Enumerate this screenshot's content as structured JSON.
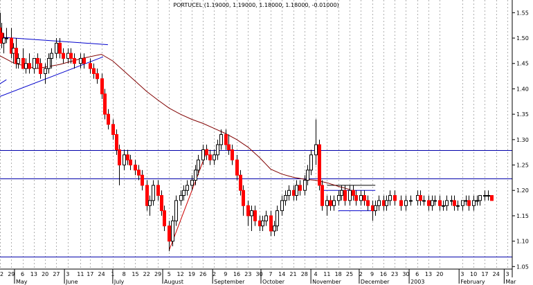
{
  "chart_data": {
    "type": "candlestick",
    "title": "PORTUCEL (1.19000, 1.19000, 1.18000, 1.18000, -0.01000)",
    "ylim": [
      1.045,
      1.575
    ],
    "y_ticks": [
      "1.55",
      "1.50",
      "1.45",
      "1.40",
      "1.35",
      "1.30",
      "1.25",
      "1.20",
      "1.15",
      "1.10",
      "1.05"
    ],
    "x_range": [
      "2002-04-22",
      "2003-03-06"
    ],
    "x_ticks_top": [
      "22",
      "29",
      "6",
      "13",
      "20",
      "27",
      "3",
      "11",
      "17",
      "24",
      "1",
      "8",
      "15",
      "22",
      "29",
      "5",
      "12",
      "19",
      "26",
      "2",
      "9",
      "16",
      "23",
      "30",
      "7",
      "14",
      "21",
      "28",
      "4",
      "11",
      "18",
      "25",
      "2",
      "9",
      "16",
      "23",
      "30",
      "6",
      "13",
      "20",
      "3",
      "10",
      "17",
      "24",
      "3"
    ],
    "x_tick_dates": [
      "2002-04-22",
      "2002-04-29",
      "2002-05-06",
      "2002-05-13",
      "2002-05-20",
      "2002-05-27",
      "2002-06-03",
      "2002-06-11",
      "2002-06-17",
      "2002-06-24",
      "2002-07-01",
      "2002-07-08",
      "2002-07-15",
      "2002-07-22",
      "2002-07-29",
      "2002-08-05",
      "2002-08-12",
      "2002-08-19",
      "2002-08-26",
      "2002-09-02",
      "2002-09-09",
      "2002-09-16",
      "2002-09-23",
      "2002-09-30",
      "2002-10-07",
      "2002-10-14",
      "2002-10-21",
      "2002-10-28",
      "2002-11-04",
      "2002-11-11",
      "2002-11-18",
      "2002-11-25",
      "2002-12-02",
      "2002-12-09",
      "2002-12-16",
      "2002-12-23",
      "2002-12-30",
      "2003-01-06",
      "2003-01-13",
      "2003-01-20",
      "2003-02-03",
      "2003-02-10",
      "2003-02-17",
      "2003-02-24",
      "2003-03-03"
    ],
    "months": [
      {
        "label": "May",
        "date": "2002-05-01"
      },
      {
        "label": "June",
        "date": "2002-06-01"
      },
      {
        "label": "July",
        "date": "2002-07-01"
      },
      {
        "label": "August",
        "date": "2002-08-01"
      },
      {
        "label": "September",
        "date": "2002-09-01"
      },
      {
        "label": "October",
        "date": "2002-10-01"
      },
      {
        "label": "November",
        "date": "2002-11-01"
      },
      {
        "label": "December",
        "date": "2002-12-01"
      },
      {
        "label": "2003",
        "date": "2003-01-01"
      },
      {
        "label": "February",
        "date": "2003-02-01"
      },
      {
        "label": "Mar",
        "date": "2003-03-01"
      }
    ],
    "horizontal_lines": [
      1.279,
      1.223,
      1.069
    ],
    "trend_lines": [
      {
        "from": [
          "2002-04-22",
          1.502
        ],
        "to": [
          "2002-06-28",
          1.487
        ],
        "color": "#0000cc"
      },
      {
        "from": [
          "2002-04-22",
          1.385
        ],
        "to": [
          "2002-06-25",
          1.463
        ],
        "color": "#0000cc"
      },
      {
        "from": [
          "2002-04-22",
          1.41
        ],
        "to": [
          "2002-04-26",
          1.418
        ],
        "color": "#0000cc"
      },
      {
        "from": [
          "2002-08-05",
          1.082
        ],
        "to": [
          "2002-08-29",
          1.282
        ],
        "color": "#cc0000"
      },
      {
        "from": [
          "2002-11-11",
          1.21
        ],
        "to": [
          "2002-12-11",
          1.21
        ],
        "color": "#000000"
      },
      {
        "from": [
          "2002-11-07",
          1.2
        ],
        "to": [
          "2002-12-11",
          1.2
        ],
        "color": "#0000cc"
      },
      {
        "from": [
          "2002-11-18",
          1.16
        ],
        "to": [
          "2002-12-11",
          1.16
        ],
        "color": "#0000cc"
      }
    ],
    "moving_average": [
      [
        "2002-04-22",
        1.465
      ],
      [
        "2002-05-01",
        1.45
      ],
      [
        "2002-05-15",
        1.44
      ],
      [
        "2002-05-29",
        1.448
      ],
      [
        "2002-06-12",
        1.46
      ],
      [
        "2002-06-24",
        1.468
      ],
      [
        "2002-07-01",
        1.455
      ],
      [
        "2002-07-08",
        1.435
      ],
      [
        "2002-07-15",
        1.415
      ],
      [
        "2002-07-22",
        1.395
      ],
      [
        "2002-07-29",
        1.378
      ],
      [
        "2002-08-05",
        1.362
      ],
      [
        "2002-08-12",
        1.35
      ],
      [
        "2002-08-19",
        1.34
      ],
      [
        "2002-08-26",
        1.332
      ],
      [
        "2002-09-02",
        1.322
      ],
      [
        "2002-09-09",
        1.312
      ],
      [
        "2002-09-16",
        1.3
      ],
      [
        "2002-09-23",
        1.285
      ],
      [
        "2002-09-30",
        1.265
      ],
      [
        "2002-10-07",
        1.242
      ],
      [
        "2002-10-14",
        1.232
      ],
      [
        "2002-10-21",
        1.226
      ],
      [
        "2002-10-28",
        1.222
      ],
      [
        "2002-11-04",
        1.22
      ],
      [
        "2002-11-11",
        1.215
      ],
      [
        "2002-11-18",
        1.208
      ],
      [
        "2002-11-25",
        1.202
      ]
    ],
    "ohlc": [
      [
        "2002-04-22",
        1.52,
        1.55,
        1.5,
        1.51
      ],
      [
        "2002-04-23",
        1.51,
        1.53,
        1.48,
        1.49
      ],
      [
        "2002-04-24",
        1.49,
        1.51,
        1.47,
        1.5
      ],
      [
        "2002-04-26",
        1.5,
        1.52,
        1.49,
        1.5
      ],
      [
        "2002-04-29",
        1.5,
        1.52,
        1.46,
        1.47
      ],
      [
        "2002-04-30",
        1.47,
        1.49,
        1.45,
        1.48
      ],
      [
        "2002-05-02",
        1.48,
        1.5,
        1.44,
        1.45
      ],
      [
        "2002-05-03",
        1.45,
        1.47,
        1.44,
        1.46
      ],
      [
        "2002-05-06",
        1.46,
        1.48,
        1.44,
        1.44
      ],
      [
        "2002-05-08",
        1.44,
        1.46,
        1.43,
        1.45
      ],
      [
        "2002-05-10",
        1.45,
        1.47,
        1.43,
        1.44
      ],
      [
        "2002-05-13",
        1.44,
        1.46,
        1.43,
        1.46
      ],
      [
        "2002-05-15",
        1.46,
        1.47,
        1.44,
        1.45
      ],
      [
        "2002-05-17",
        1.45,
        1.46,
        1.42,
        1.43
      ],
      [
        "2002-05-20",
        1.43,
        1.45,
        1.41,
        1.44
      ],
      [
        "2002-05-22",
        1.44,
        1.47,
        1.43,
        1.46
      ],
      [
        "2002-05-24",
        1.46,
        1.48,
        1.44,
        1.47
      ],
      [
        "2002-05-27",
        1.47,
        1.5,
        1.46,
        1.49
      ],
      [
        "2002-05-29",
        1.49,
        1.5,
        1.46,
        1.47
      ],
      [
        "2002-05-31",
        1.47,
        1.48,
        1.45,
        1.46
      ],
      [
        "2002-06-03",
        1.46,
        1.48,
        1.45,
        1.47
      ],
      [
        "2002-06-05",
        1.47,
        1.48,
        1.45,
        1.46
      ],
      [
        "2002-06-07",
        1.46,
        1.47,
        1.44,
        1.45
      ],
      [
        "2002-06-11",
        1.45,
        1.47,
        1.44,
        1.46
      ],
      [
        "2002-06-13",
        1.46,
        1.47,
        1.44,
        1.45
      ],
      [
        "2002-06-17",
        1.45,
        1.46,
        1.43,
        1.44
      ],
      [
        "2002-06-19",
        1.44,
        1.45,
        1.42,
        1.43
      ],
      [
        "2002-06-21",
        1.43,
        1.44,
        1.41,
        1.42
      ],
      [
        "2002-06-24",
        1.42,
        1.43,
        1.38,
        1.39
      ],
      [
        "2002-06-26",
        1.39,
        1.4,
        1.34,
        1.35
      ],
      [
        "2002-06-28",
        1.35,
        1.36,
        1.32,
        1.33
      ],
      [
        "2002-07-01",
        1.33,
        1.34,
        1.3,
        1.31
      ],
      [
        "2002-07-03",
        1.31,
        1.32,
        1.27,
        1.28
      ],
      [
        "2002-07-05",
        1.28,
        1.29,
        1.21,
        1.25
      ],
      [
        "2002-07-08",
        1.25,
        1.28,
        1.24,
        1.27
      ],
      [
        "2002-07-10",
        1.27,
        1.28,
        1.25,
        1.26
      ],
      [
        "2002-07-12",
        1.26,
        1.27,
        1.24,
        1.25
      ],
      [
        "2002-07-15",
        1.25,
        1.26,
        1.23,
        1.24
      ],
      [
        "2002-07-17",
        1.24,
        1.25,
        1.22,
        1.23
      ],
      [
        "2002-07-19",
        1.23,
        1.24,
        1.2,
        1.21
      ],
      [
        "2002-07-22",
        1.21,
        1.22,
        1.16,
        1.17
      ],
      [
        "2002-07-24",
        1.17,
        1.19,
        1.15,
        1.18
      ],
      [
        "2002-07-26",
        1.18,
        1.22,
        1.17,
        1.21
      ],
      [
        "2002-07-29",
        1.21,
        1.22,
        1.18,
        1.19
      ],
      [
        "2002-07-31",
        1.19,
        1.2,
        1.15,
        1.16
      ],
      [
        "2002-08-02",
        1.16,
        1.17,
        1.12,
        1.13
      ],
      [
        "2002-08-05",
        1.13,
        1.14,
        1.08,
        1.1
      ],
      [
        "2002-08-07",
        1.1,
        1.15,
        1.09,
        1.14
      ],
      [
        "2002-08-09",
        1.14,
        1.19,
        1.13,
        1.18
      ],
      [
        "2002-08-12",
        1.18,
        1.2,
        1.17,
        1.19
      ],
      [
        "2002-08-14",
        1.19,
        1.21,
        1.18,
        1.2
      ],
      [
        "2002-08-16",
        1.2,
        1.22,
        1.19,
        1.21
      ],
      [
        "2002-08-19",
        1.21,
        1.23,
        1.2,
        1.22
      ],
      [
        "2002-08-21",
        1.22,
        1.25,
        1.21,
        1.24
      ],
      [
        "2002-08-23",
        1.24,
        1.27,
        1.23,
        1.26
      ],
      [
        "2002-08-26",
        1.26,
        1.29,
        1.25,
        1.28
      ],
      [
        "2002-08-28",
        1.28,
        1.29,
        1.26,
        1.27
      ],
      [
        "2002-08-30",
        1.27,
        1.28,
        1.25,
        1.26
      ],
      [
        "2002-09-02",
        1.26,
        1.28,
        1.25,
        1.27
      ],
      [
        "2002-09-04",
        1.27,
        1.3,
        1.26,
        1.29
      ],
      [
        "2002-09-06",
        1.29,
        1.32,
        1.28,
        1.31
      ],
      [
        "2002-09-09",
        1.31,
        1.32,
        1.28,
        1.29
      ],
      [
        "2002-09-11",
        1.29,
        1.31,
        1.27,
        1.28
      ],
      [
        "2002-09-13",
        1.28,
        1.29,
        1.25,
        1.26
      ],
      [
        "2002-09-16",
        1.26,
        1.27,
        1.22,
        1.23
      ],
      [
        "2002-09-18",
        1.23,
        1.24,
        1.19,
        1.2
      ],
      [
        "2002-09-20",
        1.2,
        1.21,
        1.15,
        1.17
      ],
      [
        "2002-09-23",
        1.17,
        1.18,
        1.13,
        1.15
      ],
      [
        "2002-09-25",
        1.15,
        1.17,
        1.12,
        1.16
      ],
      [
        "2002-09-27",
        1.16,
        1.17,
        1.13,
        1.14
      ],
      [
        "2002-09-30",
        1.14,
        1.15,
        1.12,
        1.13
      ],
      [
        "2002-10-02",
        1.13,
        1.15,
        1.12,
        1.14
      ],
      [
        "2002-10-04",
        1.14,
        1.16,
        1.13,
        1.15
      ],
      [
        "2002-10-07",
        1.15,
        1.16,
        1.11,
        1.12
      ],
      [
        "2002-10-09",
        1.12,
        1.14,
        1.11,
        1.13
      ],
      [
        "2002-10-11",
        1.13,
        1.17,
        1.12,
        1.16
      ],
      [
        "2002-10-14",
        1.16,
        1.19,
        1.15,
        1.18
      ],
      [
        "2002-10-16",
        1.18,
        1.2,
        1.17,
        1.19
      ],
      [
        "2002-10-18",
        1.19,
        1.21,
        1.18,
        1.2
      ],
      [
        "2002-10-21",
        1.2,
        1.21,
        1.18,
        1.19
      ],
      [
        "2002-10-23",
        1.19,
        1.22,
        1.18,
        1.21
      ],
      [
        "2002-10-25",
        1.21,
        1.22,
        1.19,
        1.2
      ],
      [
        "2002-10-28",
        1.2,
        1.23,
        1.19,
        1.22
      ],
      [
        "2002-10-30",
        1.22,
        1.25,
        1.21,
        1.24
      ],
      [
        "2002-11-01",
        1.24,
        1.28,
        1.23,
        1.27
      ],
      [
        "2002-11-04",
        1.27,
        1.34,
        1.25,
        1.29
      ],
      [
        "2002-11-06",
        1.29,
        1.3,
        1.2,
        1.21
      ],
      [
        "2002-11-08",
        1.21,
        1.22,
        1.16,
        1.17
      ],
      [
        "2002-11-11",
        1.17,
        1.19,
        1.15,
        1.18
      ],
      [
        "2002-11-13",
        1.18,
        1.19,
        1.16,
        1.17
      ],
      [
        "2002-11-15",
        1.17,
        1.19,
        1.16,
        1.18
      ],
      [
        "2002-11-18",
        1.18,
        1.2,
        1.17,
        1.19
      ],
      [
        "2002-11-20",
        1.19,
        1.21,
        1.18,
        1.2
      ],
      [
        "2002-11-22",
        1.2,
        1.21,
        1.17,
        1.18
      ],
      [
        "2002-11-25",
        1.18,
        1.21,
        1.17,
        1.2
      ],
      [
        "2002-11-27",
        1.2,
        1.21,
        1.18,
        1.19
      ],
      [
        "2002-11-29",
        1.19,
        1.2,
        1.17,
        1.18
      ],
      [
        "2002-12-02",
        1.18,
        1.2,
        1.17,
        1.19
      ],
      [
        "2002-12-04",
        1.19,
        1.2,
        1.17,
        1.18
      ],
      [
        "2002-12-06",
        1.18,
        1.19,
        1.16,
        1.17
      ],
      [
        "2002-12-09",
        1.17,
        1.18,
        1.14,
        1.16
      ],
      [
        "2002-12-11",
        1.16,
        1.18,
        1.15,
        1.17
      ],
      [
        "2002-12-13",
        1.17,
        1.19,
        1.16,
        1.18
      ],
      [
        "2002-12-16",
        1.18,
        1.19,
        1.16,
        1.17
      ],
      [
        "2002-12-18",
        1.17,
        1.19,
        1.16,
        1.18
      ],
      [
        "2002-12-20",
        1.18,
        1.2,
        1.17,
        1.19
      ],
      [
        "2002-12-23",
        1.19,
        1.2,
        1.17,
        1.18
      ],
      [
        "2002-12-27",
        1.18,
        1.19,
        1.16,
        1.17
      ],
      [
        "2002-12-30",
        1.17,
        1.19,
        1.16,
        1.18
      ],
      [
        "2003-01-02",
        1.18,
        1.19,
        1.17,
        1.18
      ],
      [
        "2003-01-06",
        1.18,
        1.2,
        1.17,
        1.19
      ],
      [
        "2003-01-08",
        1.19,
        1.2,
        1.17,
        1.18
      ],
      [
        "2003-01-10",
        1.18,
        1.19,
        1.17,
        1.18
      ],
      [
        "2003-01-13",
        1.18,
        1.19,
        1.16,
        1.17
      ],
      [
        "2003-01-15",
        1.17,
        1.19,
        1.16,
        1.18
      ],
      [
        "2003-01-17",
        1.18,
        1.19,
        1.17,
        1.18
      ],
      [
        "2003-01-20",
        1.18,
        1.19,
        1.16,
        1.17
      ],
      [
        "2003-01-22",
        1.17,
        1.18,
        1.16,
        1.17
      ],
      [
        "2003-01-24",
        1.17,
        1.19,
        1.16,
        1.18
      ],
      [
        "2003-01-27",
        1.18,
        1.19,
        1.17,
        1.18
      ],
      [
        "2003-01-29",
        1.18,
        1.19,
        1.16,
        1.17
      ],
      [
        "2003-01-31",
        1.17,
        1.18,
        1.16,
        1.17
      ],
      [
        "2003-02-03",
        1.17,
        1.18,
        1.16,
        1.18
      ],
      [
        "2003-02-05",
        1.18,
        1.19,
        1.17,
        1.18
      ],
      [
        "2003-02-07",
        1.18,
        1.19,
        1.16,
        1.17
      ],
      [
        "2003-02-10",
        1.17,
        1.19,
        1.16,
        1.18
      ],
      [
        "2003-02-12",
        1.18,
        1.19,
        1.17,
        1.18
      ],
      [
        "2003-02-14",
        1.18,
        1.19,
        1.17,
        1.19
      ],
      [
        "2003-02-17",
        1.19,
        1.2,
        1.18,
        1.19
      ],
      [
        "2003-02-19",
        1.19,
        1.2,
        1.18,
        1.19
      ],
      [
        "2003-02-21",
        1.19,
        1.19,
        1.18,
        1.18
      ]
    ]
  },
  "colors": {
    "up_body": "#ffffff",
    "down_body": "#ff0000",
    "candle_outline": "#000000",
    "moving_average": "#800000",
    "horizontal_lines": "#0000aa",
    "grid": "#b0b0b0"
  }
}
